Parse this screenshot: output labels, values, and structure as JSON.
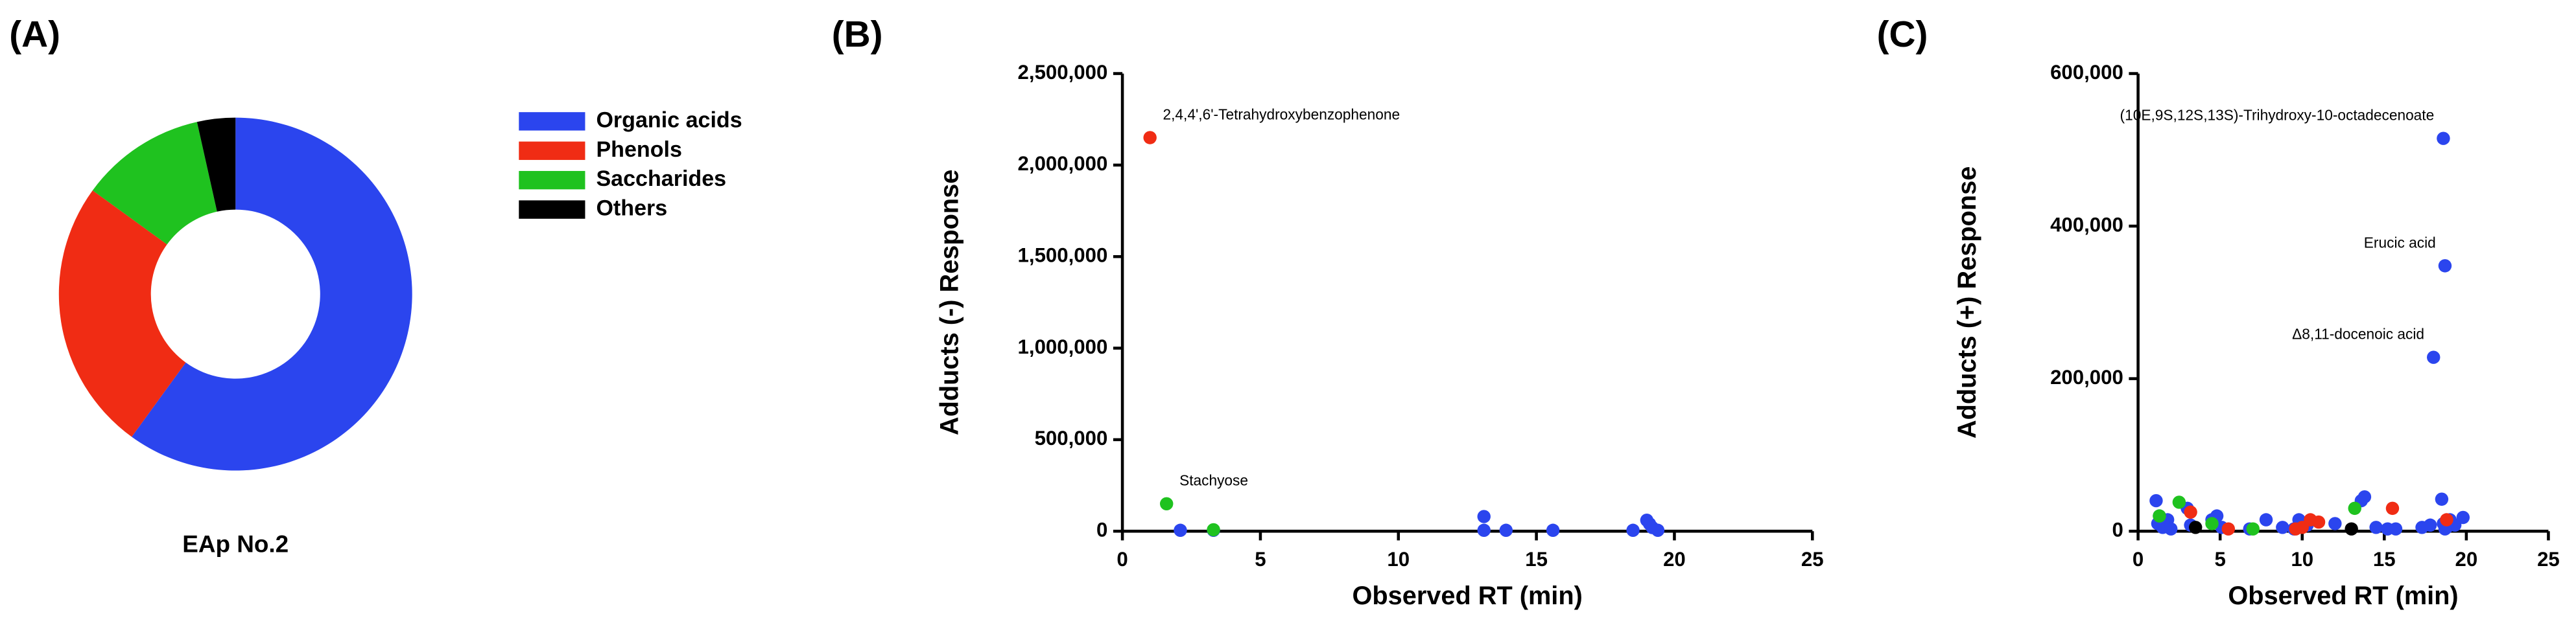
{
  "chart_data": [
    {
      "type": "pie",
      "panel_label": "(A)",
      "title": "EAp No.2",
      "categories": [
        "Organic acids",
        "Phenols",
        "Saccharides",
        "Others"
      ],
      "values": [
        60,
        25,
        11.5,
        3.5
      ],
      "colors": [
        "#2b45ee",
        "#f02c14",
        "#1fc21f",
        "#000000"
      ],
      "donut": true
    },
    {
      "type": "scatter",
      "panel_label": "(B)",
      "x_label": "Observed RT (min)",
      "y_label": "Adducts (-) Response",
      "xlim": [
        0,
        25
      ],
      "xticks": [
        0,
        5,
        10,
        15,
        20,
        25
      ],
      "ylim": [
        0,
        2500000
      ],
      "yticks": [
        0,
        {
          "value": 500000,
          "label": "500,000"
        },
        {
          "value": 1000000,
          "label": "1,000,000"
        },
        {
          "value": 1500000,
          "label": "1,500,000"
        },
        {
          "value": 2000000,
          "label": "2,000,000"
        },
        {
          "value": 2500000,
          "label": "2,500,000"
        }
      ],
      "series": [
        {
          "color": "#2b45ee",
          "x": [
            2.1,
            3.3,
            13.1,
            13.1,
            13.9,
            15.6,
            18.5,
            19.0,
            19.1,
            19.2,
            19.4
          ],
          "values": [
            5000,
            5000,
            80000,
            5000,
            5000,
            5000,
            5000,
            60000,
            40000,
            20000,
            5000
          ]
        },
        {
          "color": "#f02c14",
          "x": [
            1.0
          ],
          "values": [
            2150000
          ]
        },
        {
          "color": "#1fc21f",
          "x": [
            1.6,
            3.3
          ],
          "values": [
            150000,
            8000
          ]
        }
      ],
      "annotations": [
        {
          "text": "2,4,4',6'-Tetrahydroxybenzophenone",
          "x": 1.0,
          "y": 2150000
        },
        {
          "text": "Stachyose",
          "x": 1.6,
          "y": 150000
        }
      ]
    },
    {
      "type": "scatter",
      "panel_label": "(C)",
      "x_label": "Observed RT (min)",
      "y_label": "Adducts (+) Response",
      "xlim": [
        0,
        25
      ],
      "xticks": [
        0,
        5,
        10,
        15,
        20,
        25
      ],
      "ylim": [
        0,
        600000
      ],
      "yticks": [
        0,
        {
          "value": 200000,
          "label": "200,000"
        },
        {
          "value": 400000,
          "label": "400,000"
        },
        {
          "value": 600000,
          "label": "600,000"
        }
      ],
      "series": [
        {
          "color": "#2b45ee",
          "x": [
            1.1,
            1.2,
            1.3,
            1.5,
            1.8,
            2.0,
            3.0,
            3.2,
            4.5,
            4.8,
            5.1,
            6.8,
            7.8,
            8.8,
            9.5,
            9.8,
            10.3,
            12.0,
            13.8,
            14.5,
            15.2,
            15.7,
            17.3,
            17.8,
            18.5,
            18.6,
            18.8,
            19.0,
            19.3,
            19.8,
            13.6,
            18.7,
            18.6,
            18.7,
            18.0
          ],
          "values": [
            40000,
            10000,
            20000,
            5000,
            15000,
            3000,
            30000,
            8000,
            15000,
            20000,
            5000,
            3000,
            15000,
            5000,
            3000,
            15000,
            8000,
            10000,
            45000,
            5000,
            3000,
            3000,
            5000,
            8000,
            42000,
            10000,
            5000,
            15000,
            8000,
            18000,
            40000,
            3000,
            515000,
            348000,
            228000
          ]
        },
        {
          "color": "#f02c14",
          "x": [
            3.2,
            5.5,
            9.6,
            10.0,
            10.5,
            11.0,
            15.5,
            18.8
          ],
          "values": [
            25000,
            3000,
            3000,
            5000,
            15000,
            12000,
            30000,
            15000
          ]
        },
        {
          "color": "#1fc21f",
          "x": [
            1.3,
            2.5,
            4.5,
            7.0,
            13.2
          ],
          "values": [
            20000,
            38000,
            10000,
            3000,
            30000
          ]
        },
        {
          "color": "#000000",
          "x": [
            3.5,
            13.0
          ],
          "values": [
            5000,
            3000
          ]
        }
      ],
      "annotations": [
        {
          "text": "(10E,9S,12S,13S)-Trihydroxy-10-octadecenoate",
          "x": 18.6,
          "y": 515000
        },
        {
          "text": "Erucic acid",
          "x": 18.7,
          "y": 348000
        },
        {
          "text": "Δ8,11-docenoic acid",
          "x": 18.0,
          "y": 228000
        }
      ]
    }
  ]
}
